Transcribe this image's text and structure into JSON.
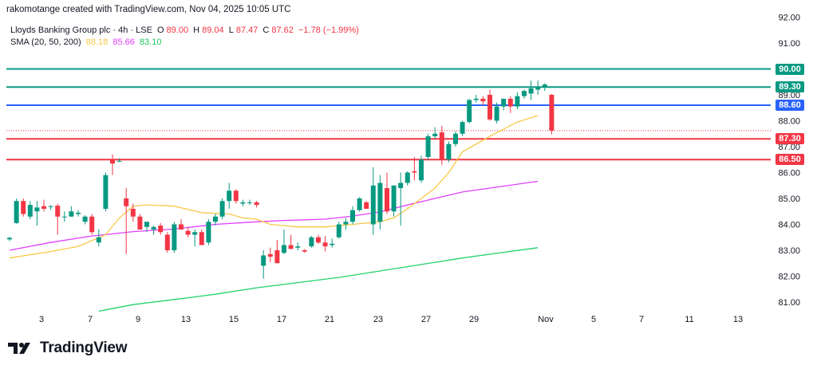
{
  "header": {
    "credit": "rakomotange created with TradingView.com, Nov 04, 2025 10:05 UTC"
  },
  "legend": {
    "symbol": "Lloyds Banking Group plc · 4h · LSE",
    "o_label": "O",
    "o_value": "89.00",
    "h_label": "H",
    "h_value": "89.04",
    "l_label": "L",
    "l_value": "87.47",
    "c_label": "C",
    "c_value": "87.62",
    "change": "−1.78 (−1.99%)",
    "sma_label": "SMA (20, 50, 200)",
    "sma20": "88.18",
    "sma50": "85.66",
    "sma200": "83.10"
  },
  "footer": {
    "brand": "TradingView",
    "logo_icon": "tradingview-logo-icon"
  },
  "colors": {
    "up": "#089981",
    "down": "#f23645",
    "sma20": "#f7c948",
    "sma50": "#e040fb",
    "sma200": "#22d36a",
    "level_green": "#089981",
    "level_blue": "#2962ff",
    "level_red": "#f23645"
  },
  "chart_data": {
    "type": "candlestick",
    "title": "Lloyds Banking Group plc · 4h · LSE",
    "ylim": [
      80.6,
      92.6
    ],
    "y_ticks": [
      "81.00",
      "82.00",
      "83.00",
      "84.00",
      "85.00",
      "86.00",
      "87.00",
      "88.00",
      "89.00",
      "90.00",
      "91.00",
      "92.00"
    ],
    "x_ticks": [
      "3",
      "7",
      "9",
      "13",
      "15",
      "17",
      "21",
      "23",
      "27",
      "29",
      "Nov",
      "5",
      "7",
      "11",
      "13"
    ],
    "grid": false,
    "levels": [
      {
        "value": 90.0,
        "label": "90.00",
        "color": "#089981"
      },
      {
        "value": 89.3,
        "label": "89.30",
        "color": "#089981"
      },
      {
        "value": 88.6,
        "label": "88.60",
        "color": "#2962ff"
      },
      {
        "value": 87.3,
        "label": "87.30",
        "color": "#f23645"
      },
      {
        "value": 86.5,
        "label": "86.50",
        "color": "#f23645"
      }
    ],
    "last_price_line": 87.62,
    "candles": [
      [
        83.42,
        83.52,
        83.35,
        83.48
      ],
      [
        84.05,
        85.0,
        84.02,
        84.9
      ],
      [
        84.9,
        85.0,
        84.3,
        84.4
      ],
      [
        84.3,
        84.9,
        84.2,
        84.75
      ],
      [
        84.5,
        84.9,
        83.95,
        84.65
      ],
      [
        84.7,
        84.95,
        84.5,
        84.6
      ],
      [
        84.7,
        84.75,
        84.55,
        84.7
      ],
      [
        84.72,
        84.8,
        83.6,
        84.3
      ],
      [
        84.3,
        84.5,
        84.1,
        84.3
      ],
      [
        84.3,
        84.7,
        84.3,
        84.5
      ],
      [
        84.4,
        84.55,
        84.3,
        84.45
      ],
      [
        84.1,
        84.35,
        84.0,
        84.3
      ],
      [
        84.3,
        84.4,
        83.6,
        83.7
      ],
      [
        83.3,
        83.8,
        83.15,
        83.5
      ],
      [
        84.6,
        86.0,
        84.5,
        85.9
      ],
      [
        86.5,
        86.7,
        85.9,
        86.35
      ],
      [
        86.45,
        86.55,
        86.4,
        86.45
      ],
      [
        85.0,
        85.4,
        82.85,
        84.7
      ],
      [
        84.6,
        84.8,
        84.1,
        84.3
      ],
      [
        84.3,
        84.4,
        83.8,
        83.8
      ],
      [
        83.9,
        84.1,
        83.7,
        84.1
      ],
      [
        83.8,
        83.95,
        83.6,
        83.9
      ],
      [
        83.95,
        84.05,
        83.6,
        83.7
      ],
      [
        83.6,
        83.7,
        82.9,
        83.0
      ],
      [
        83.0,
        84.1,
        82.9,
        84.0
      ],
      [
        84.0,
        84.2,
        83.9,
        83.8
      ],
      [
        83.75,
        83.9,
        83.5,
        83.6
      ],
      [
        83.6,
        83.8,
        83.15,
        83.7
      ],
      [
        83.7,
        83.8,
        83.2,
        83.2
      ],
      [
        83.3,
        84.2,
        83.2,
        84.1
      ],
      [
        84.1,
        84.4,
        83.95,
        84.3
      ],
      [
        84.3,
        85.0,
        84.2,
        84.9
      ],
      [
        84.9,
        85.6,
        84.6,
        85.3
      ],
      [
        85.3,
        85.35,
        84.8,
        84.9
      ],
      [
        84.8,
        84.95,
        84.7,
        84.85
      ],
      [
        84.85,
        84.95,
        84.75,
        84.85
      ],
      [
        84.85,
        84.9,
        84.65,
        84.75
      ],
      [
        82.4,
        83.0,
        81.9,
        82.8
      ],
      [
        82.85,
        83.1,
        82.55,
        82.75
      ],
      [
        83.0,
        83.4,
        82.5,
        82.5
      ],
      [
        82.9,
        83.8,
        82.85,
        83.2
      ],
      [
        83.2,
        83.6,
        83.05,
        83.05
      ],
      [
        83.1,
        83.3,
        83.0,
        83.15
      ],
      [
        83.0,
        83.05,
        82.9,
        82.95
      ],
      [
        83.15,
        83.55,
        83.1,
        83.5
      ],
      [
        83.5,
        83.6,
        83.25,
        83.3
      ],
      [
        83.3,
        83.55,
        82.95,
        83.15
      ],
      [
        83.2,
        83.45,
        83.1,
        83.25
      ],
      [
        83.5,
        84.1,
        83.45,
        84.0
      ],
      [
        84.0,
        84.25,
        83.8,
        84.1
      ],
      [
        84.1,
        84.7,
        84.0,
        84.55
      ],
      [
        84.55,
        85.05,
        84.5,
        85.0
      ],
      [
        84.85,
        84.9,
        84.6,
        84.6
      ],
      [
        84.0,
        86.2,
        83.6,
        85.5
      ],
      [
        84.1,
        85.9,
        83.8,
        85.6
      ],
      [
        85.4,
        86.0,
        84.4,
        84.5
      ],
      [
        84.5,
        85.5,
        84.3,
        85.5
      ],
      [
        85.4,
        86.0,
        83.95,
        85.6
      ],
      [
        85.6,
        86.05,
        85.5,
        86.0
      ],
      [
        86.05,
        86.6,
        85.7,
        86.0
      ],
      [
        85.7,
        86.65,
        85.6,
        86.5
      ],
      [
        86.6,
        87.5,
        86.5,
        87.4
      ],
      [
        87.4,
        87.75,
        87.3,
        87.5
      ],
      [
        87.55,
        87.8,
        86.3,
        86.5
      ],
      [
        86.5,
        87.2,
        86.4,
        87.1
      ],
      [
        87.1,
        87.6,
        87.0,
        87.5
      ],
      [
        87.5,
        88.0,
        87.4,
        87.95
      ],
      [
        87.95,
        88.85,
        87.9,
        88.8
      ],
      [
        88.8,
        89.0,
        88.7,
        88.85
      ],
      [
        88.85,
        88.95,
        88.6,
        88.75
      ],
      [
        89.0,
        89.2,
        88.0,
        88.05
      ],
      [
        88.0,
        88.7,
        87.9,
        88.55
      ],
      [
        88.55,
        88.85,
        88.4,
        88.85
      ],
      [
        88.85,
        88.95,
        88.3,
        88.55
      ],
      [
        88.55,
        89.1,
        88.45,
        88.95
      ],
      [
        88.95,
        89.2,
        88.85,
        89.15
      ],
      [
        89.05,
        89.55,
        88.8,
        89.25
      ],
      [
        89.2,
        89.55,
        89.0,
        89.3
      ],
      [
        89.3,
        89.45,
        89.15,
        89.4
      ],
      [
        89.0,
        89.04,
        87.47,
        87.62
      ]
    ],
    "sma20": [
      [
        0,
        82.7
      ],
      [
        6,
        82.95
      ],
      [
        10,
        83.15
      ],
      [
        14,
        83.6
      ],
      [
        16,
        84.25
      ],
      [
        18,
        84.7
      ],
      [
        20,
        84.75
      ],
      [
        24,
        84.7
      ],
      [
        28,
        84.45
      ],
      [
        32,
        84.4
      ],
      [
        34,
        84.25
      ],
      [
        36,
        84.2
      ],
      [
        38,
        84.0
      ],
      [
        42,
        83.9
      ],
      [
        46,
        83.9
      ],
      [
        50,
        84.0
      ],
      [
        54,
        84.1
      ],
      [
        56,
        84.25
      ],
      [
        58,
        84.6
      ],
      [
        62,
        85.4
      ],
      [
        64,
        86.0
      ],
      [
        66,
        86.8
      ],
      [
        70,
        87.4
      ],
      [
        74,
        87.95
      ],
      [
        77,
        88.2
      ]
    ],
    "sma50": [
      [
        0,
        83.0
      ],
      [
        6,
        83.3
      ],
      [
        12,
        83.55
      ],
      [
        18,
        83.72
      ],
      [
        24,
        83.82
      ],
      [
        30,
        84.0
      ],
      [
        36,
        84.1
      ],
      [
        40,
        84.15
      ],
      [
        46,
        84.2
      ],
      [
        50,
        84.32
      ],
      [
        54,
        84.48
      ],
      [
        58,
        84.75
      ],
      [
        62,
        85.0
      ],
      [
        66,
        85.25
      ],
      [
        70,
        85.4
      ],
      [
        74,
        85.55
      ],
      [
        77,
        85.66
      ]
    ],
    "sma200": [
      [
        13,
        80.65
      ],
      [
        18,
        80.9
      ],
      [
        24,
        81.1
      ],
      [
        30,
        81.3
      ],
      [
        36,
        81.55
      ],
      [
        42,
        81.75
      ],
      [
        48,
        81.95
      ],
      [
        54,
        82.2
      ],
      [
        60,
        82.45
      ],
      [
        66,
        82.7
      ],
      [
        72,
        82.92
      ],
      [
        77,
        83.1
      ]
    ]
  }
}
